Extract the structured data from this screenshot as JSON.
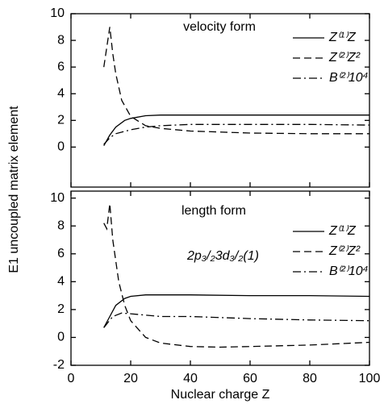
{
  "ylabel": "E1 uncoupled matrix element",
  "chart_data": [
    {
      "type": "line",
      "title": "velocity form",
      "xlim": [
        0,
        100
      ],
      "ylim": [
        -3,
        10
      ],
      "yticks": [
        0,
        2,
        4,
        6,
        8,
        10
      ],
      "series": [
        {
          "name": "Z⁽¹⁾Z",
          "color": "#000000",
          "dash": "solid",
          "x": [
            11,
            12,
            13,
            15,
            18,
            20,
            25,
            30,
            40,
            60,
            80,
            100
          ],
          "values": [
            0.1,
            0.5,
            0.9,
            1.5,
            2.0,
            2.15,
            2.35,
            2.4,
            2.4,
            2.4,
            2.4,
            2.4
          ]
        },
        {
          "name": "Z⁽²⁾Z²",
          "color": "#000000",
          "dash": "dashed",
          "x": [
            11,
            12,
            13,
            14,
            15,
            17,
            20,
            25,
            30,
            40,
            60,
            80,
            100
          ],
          "values": [
            6,
            7.5,
            9,
            7,
            5.5,
            3.5,
            2.3,
            1.6,
            1.4,
            1.2,
            1.05,
            1.0,
            1.0
          ]
        },
        {
          "name": "B⁽²⁾10⁴",
          "color": "#000000",
          "dash": "dashdot",
          "x": [
            11,
            13,
            15,
            20,
            25,
            30,
            40,
            60,
            80,
            100
          ],
          "values": [
            0.2,
            0.7,
            1.0,
            1.3,
            1.5,
            1.6,
            1.7,
            1.7,
            1.7,
            1.65
          ]
        }
      ]
    },
    {
      "type": "line",
      "title": "length form",
      "annotation": "2p₃/₂3d₃/₂(1)",
      "xlabel": "Nuclear charge Z",
      "xlim": [
        0,
        100
      ],
      "xticks": [
        0,
        20,
        40,
        60,
        80,
        100
      ],
      "ylim": [
        -2,
        10.5
      ],
      "yticks": [
        -2,
        0,
        2,
        4,
        6,
        8,
        10
      ],
      "series": [
        {
          "name": "Z⁽¹⁾Z",
          "color": "#000000",
          "dash": "solid",
          "x": [
            11,
            13,
            15,
            18,
            20,
            25,
            40,
            60,
            80,
            100
          ],
          "values": [
            0.7,
            1.5,
            2.3,
            2.8,
            2.95,
            3.05,
            3.05,
            3.0,
            3.0,
            2.95
          ]
        },
        {
          "name": "Z⁽²⁾Z²",
          "color": "#000000",
          "dash": "dashed",
          "x": [
            11,
            12,
            13,
            14,
            16,
            18,
            20,
            25,
            30,
            40,
            50,
            60,
            80,
            100
          ],
          "values": [
            8.2,
            7.8,
            9.6,
            7,
            4,
            2.3,
            1.2,
            0,
            -0.4,
            -0.65,
            -0.7,
            -0.65,
            -0.55,
            -0.35
          ]
        },
        {
          "name": "B⁽²⁾10⁴",
          "color": "#000000",
          "dash": "dashdot",
          "x": [
            11,
            14,
            17,
            20,
            30,
            40,
            60,
            80,
            100
          ],
          "values": [
            0.7,
            1.5,
            1.75,
            1.7,
            1.5,
            1.5,
            1.35,
            1.25,
            1.2
          ]
        }
      ]
    }
  ]
}
